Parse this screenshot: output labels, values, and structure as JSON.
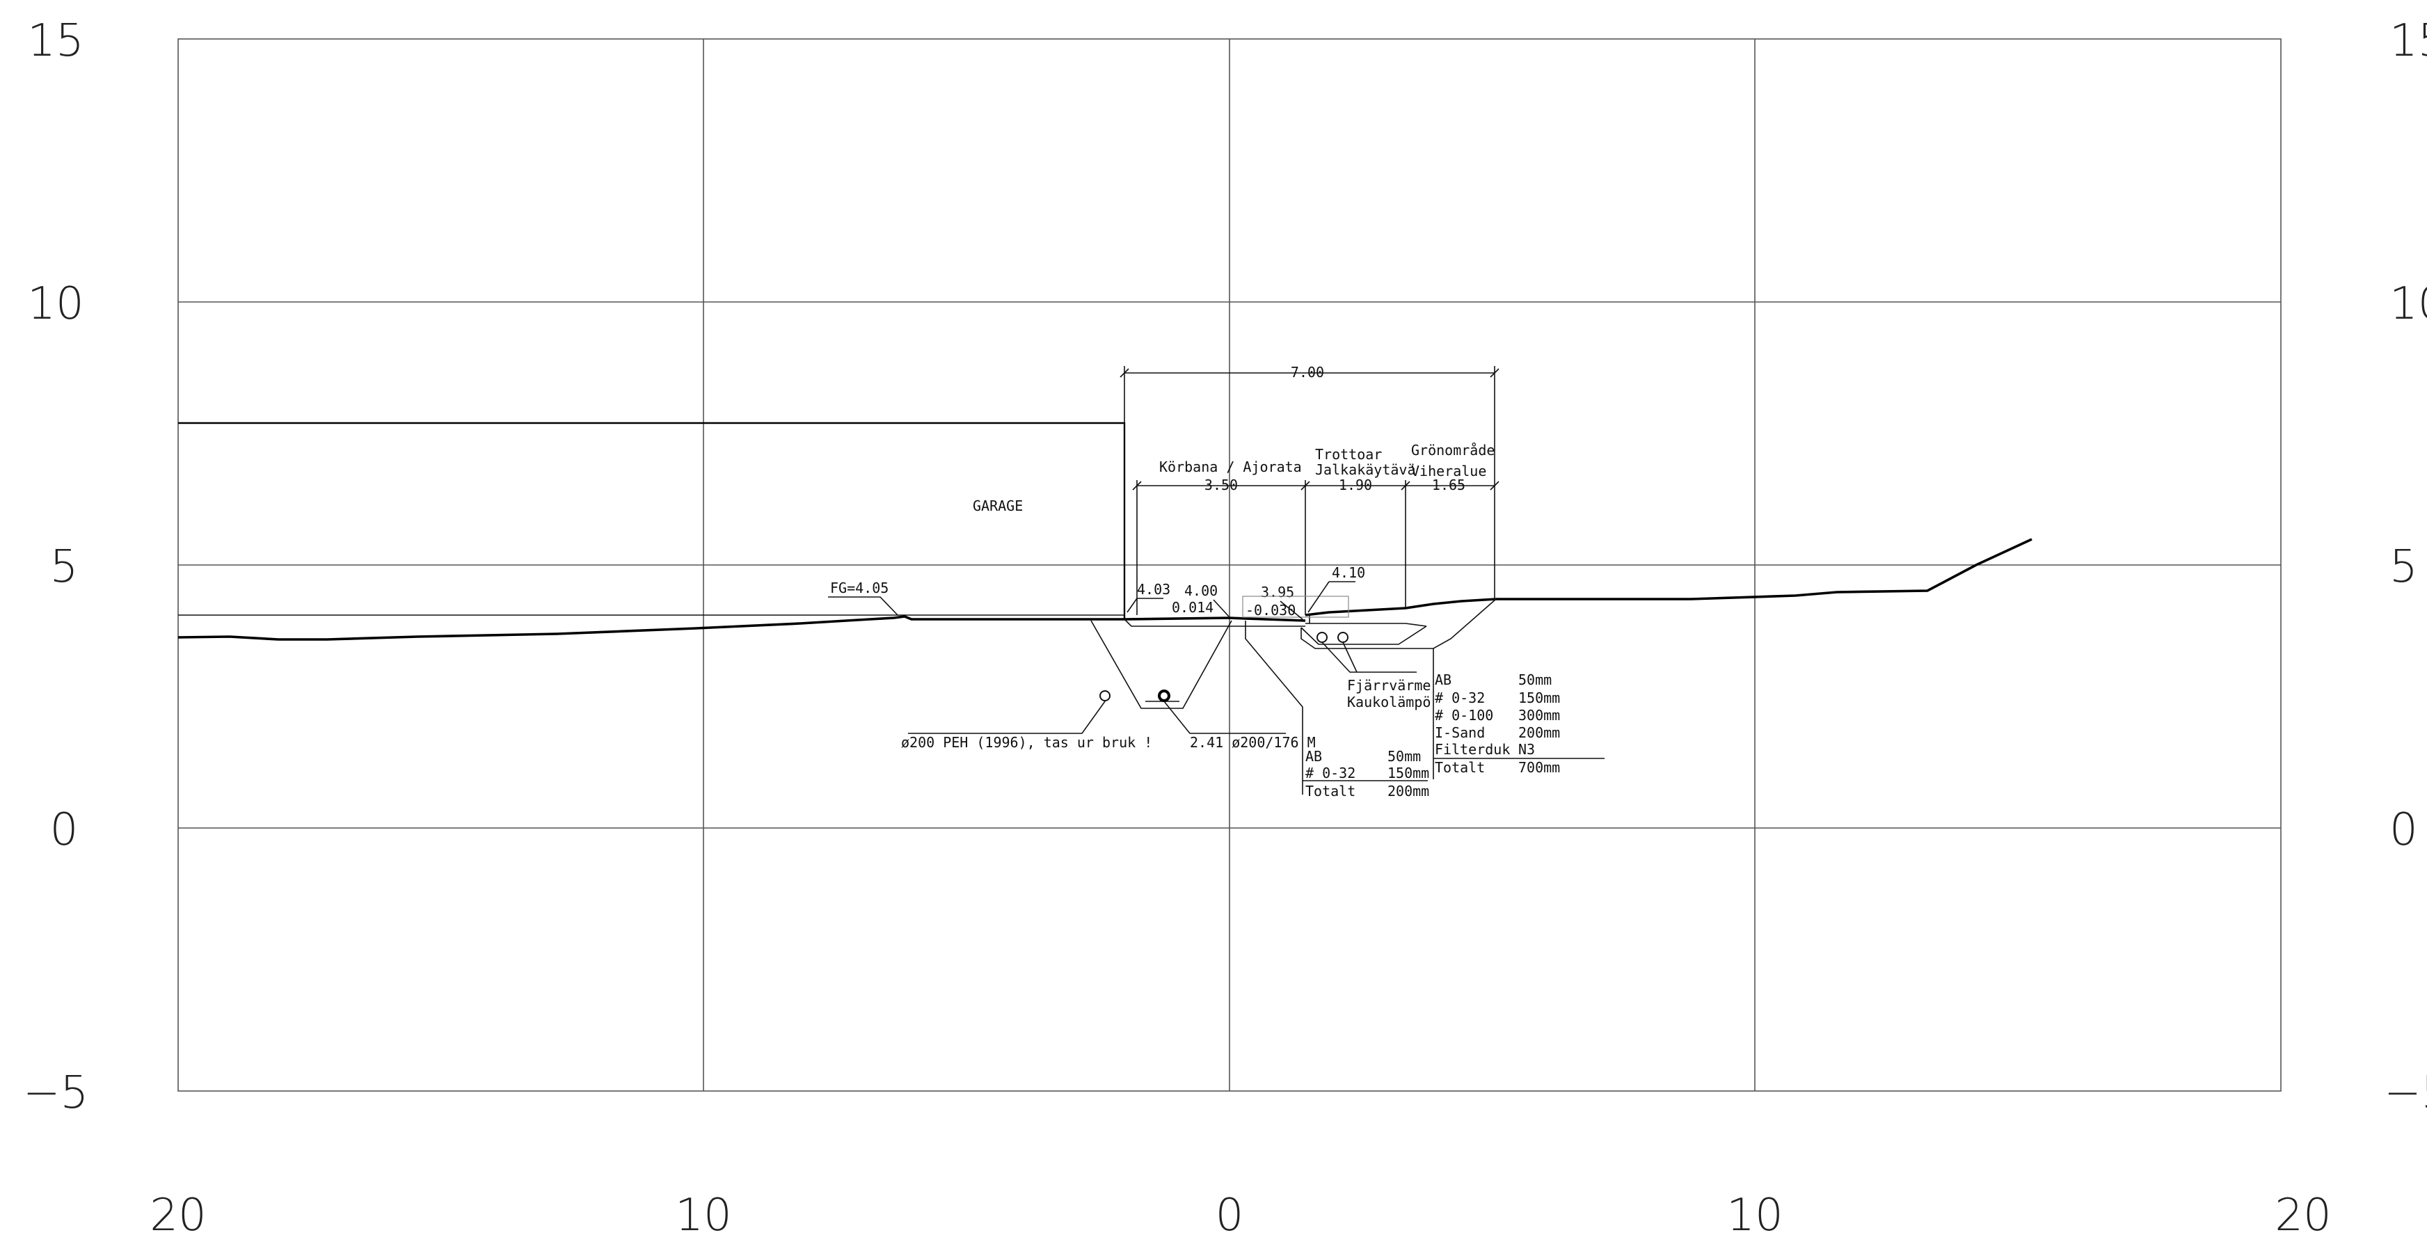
{
  "axis": {
    "x_ticks": [
      "20",
      "10",
      "0",
      "10",
      "20"
    ],
    "y_ticks": [
      "15",
      "10",
      "5",
      "0",
      "−5"
    ]
  },
  "labels": {
    "garage": "GARAGE",
    "fg": "FG=4.05",
    "pipe_old": "ø200 PEH (1996), tas ur bruk !",
    "pipe_new": "2.41 ø200/176 M",
    "total_width": "7.00",
    "road_title": "Körbana / Ajorata",
    "road_width": "3.50",
    "sidewalk_title_1": "Trottoar",
    "sidewalk_title_2": "Jalkakäytävä",
    "sidewalk_width": "1.90",
    "green_title_1": "Grönområde",
    "green_title_2": "Viheralue",
    "green_width": "1.65",
    "elev_403": "4.03",
    "elev_400": "4.00",
    "slope_road": "0.014",
    "elev_395": "3.95",
    "slope_walk": "-0.030",
    "elev_410": "4.10",
    "district_heating_1": "Fjärrvärme",
    "district_heating_2": "Kaukolämpö"
  },
  "layers_walk": [
    {
      "name": "AB",
      "value": "50mm"
    },
    {
      "name": "# 0-32",
      "value": "150mm"
    },
    {
      "name": "Totalt",
      "value": "200mm"
    }
  ],
  "layers_road": [
    {
      "name": "AB",
      "value": "50mm"
    },
    {
      "name": "# 0-32",
      "value": "150mm"
    },
    {
      "name": "# 0-100",
      "value": "300mm"
    },
    {
      "name": "I-Sand",
      "value": "200mm"
    },
    {
      "name": "Filterduk",
      "value": "N3"
    },
    {
      "name": "Totalt",
      "value": "700mm"
    }
  ]
}
